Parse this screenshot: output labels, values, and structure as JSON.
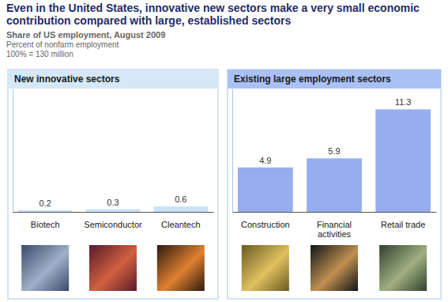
{
  "title": "Even in the United States, innovative new sectors make a very small economic contribution compared with large, established sectors",
  "subtitle": [
    "Share of US employment, August 2009",
    "Percent of nonfarm employment",
    "100% = 130 million"
  ],
  "chart_data": [
    {
      "type": "bar",
      "title": "New innovative sectors",
      "categories": [
        "Biotech",
        "Semiconductor",
        "Cleantech"
      ],
      "values": [
        0.2,
        0.3,
        0.6
      ],
      "color": "#c9e2f6",
      "ylim": [
        0,
        13.6
      ],
      "data_labels": true,
      "tick_labels": "x"
    },
    {
      "type": "bar",
      "title": "Existing large employment sectors",
      "categories": [
        "Construction",
        "Financial activities",
        "Retail trade"
      ],
      "values": [
        4.9,
        5.9,
        11.3
      ],
      "color": "#94aef0",
      "ylim": [
        0,
        13.6
      ],
      "data_labels": true,
      "tick_labels": "x"
    }
  ]
}
